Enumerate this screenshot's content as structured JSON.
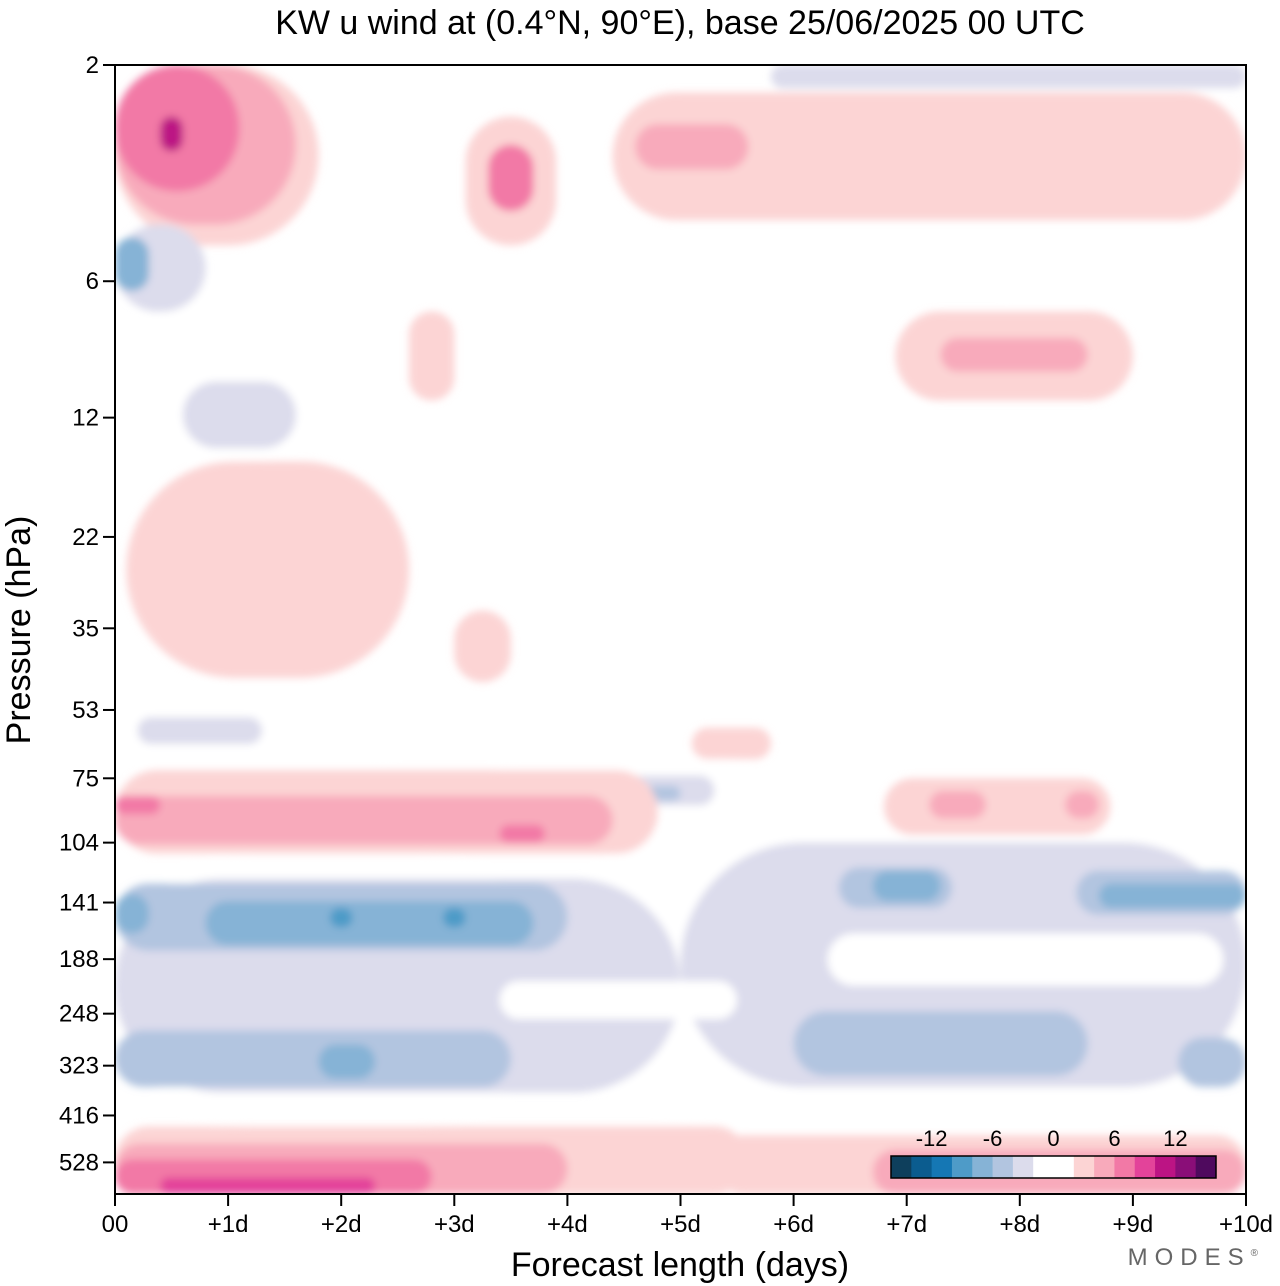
{
  "chart_data": {
    "type": "heatmap",
    "title": "KW u wind at (0.4°N, 90°E),  base 25/06/2025  00 UTC",
    "xlabel": "Forecast length (days)",
    "ylabel": "Pressure (hPa)",
    "x_ticks": [
      "00",
      "+1d",
      "+2d",
      "+3d",
      "+4d",
      "+5d",
      "+6d",
      "+7d",
      "+8d",
      "+9d",
      "+10d"
    ],
    "y_ticks": [
      "2",
      "6",
      "12",
      "22",
      "35",
      "53",
      "75",
      "104",
      "141",
      "188",
      "248",
      "323",
      "416",
      "528"
    ],
    "x_days": [
      0,
      10
    ],
    "y_scale": "log-pressure (top 2 hPa, bottom ~600 hPa)",
    "grid": false,
    "legend_placement": "bottom-right",
    "colorbar": {
      "labels": [
        "-12",
        "-6",
        "0",
        "6",
        "12"
      ],
      "label_values": [
        -12,
        -6,
        0,
        6,
        12
      ],
      "step": 2,
      "colors": [
        "#0e3f5c",
        "#0b5c8f",
        "#1577b4",
        "#4e9bc8",
        "#86b3d6",
        "#b2c5e0",
        "#dcdcec",
        "#ffffff",
        "#ffffff",
        "#fcd4d4",
        "#f8aabb",
        "#f279a6",
        "#e3439a",
        "#bc1484",
        "#8a0e78",
        "#4f0a5e"
      ]
    },
    "regions": [
      {
        "v": -2,
        "day": [
          0.0,
          3.9
        ],
        "p": [
          110,
          440
        ]
      },
      {
        "v": -2,
        "day": [
          3.9,
          10.0
        ],
        "p": [
          95,
          420
        ]
      },
      {
        "v": -4,
        "day": [
          0.0,
          5.0
        ],
        "p": [
          125,
          370
        ]
      },
      {
        "v": -4,
        "day": [
          5.0,
          10.0
        ],
        "p": [
          104,
          360
        ]
      },
      {
        "v": -2,
        "day": [
          3.4,
          5.5
        ],
        "p": [
          210,
          255
        ]
      },
      {
        "v": -2,
        "day": [
          6.3,
          9.8
        ],
        "p": [
          165,
          215
        ]
      },
      {
        "v": 0,
        "day": [
          7.5,
          7.6
        ],
        "p": [
          185,
          195
        ]
      },
      {
        "v": -6,
        "day": [
          0.0,
          4.0
        ],
        "p": [
          128,
          180
        ]
      },
      {
        "v": -6,
        "day": [
          0.0,
          3.5
        ],
        "p": [
          270,
          360
        ]
      },
      {
        "v": -6,
        "day": [
          6.0,
          8.6
        ],
        "p": [
          245,
          340
        ]
      },
      {
        "v": -6,
        "day": [
          9.4,
          10.0
        ],
        "p": [
          280,
          360
        ]
      },
      {
        "v": -6,
        "day": [
          6.4,
          7.4
        ],
        "p": [
          118,
          145
        ]
      },
      {
        "v": -6,
        "day": [
          8.5,
          10.0
        ],
        "p": [
          120,
          150
        ]
      },
      {
        "v": -8,
        "day": [
          0.0,
          0.3
        ],
        "p": [
          135,
          165
        ]
      },
      {
        "v": -8,
        "day": [
          0.8,
          3.7
        ],
        "p": [
          140,
          175
        ]
      },
      {
        "v": -8,
        "day": [
          1.8,
          2.3
        ],
        "p": [
          290,
          345
        ]
      },
      {
        "v": -8,
        "day": [
          6.7,
          7.3
        ],
        "p": [
          120,
          140
        ]
      },
      {
        "v": -8,
        "day": [
          8.7,
          10.0
        ],
        "p": [
          128,
          145
        ]
      },
      {
        "v": -10,
        "day": [
          1.9,
          2.1
        ],
        "p": [
          145,
          160
        ]
      },
      {
        "v": -10,
        "day": [
          2.9,
          3.1
        ],
        "p": [
          145,
          160
        ]
      },
      {
        "v": -2,
        "day": [
          0.0,
          2.6
        ],
        "p": [
          48,
          68
        ]
      },
      {
        "v": -4,
        "day": [
          0.2,
          1.3
        ],
        "p": [
          55,
          63
        ]
      },
      {
        "v": -2,
        "day": [
          3.3,
          5.6
        ],
        "p": [
          68,
          90
        ]
      },
      {
        "v": -4,
        "day": [
          4.2,
          5.3
        ],
        "p": [
          74,
          86
        ]
      },
      {
        "v": -6,
        "day": [
          4.5,
          5.0
        ],
        "p": [
          78,
          84
        ]
      },
      {
        "v": 2,
        "day": [
          0.0,
          4.8
        ],
        "p": [
          72,
          110
        ]
      },
      {
        "v": 4,
        "day": [
          0.0,
          4.4
        ],
        "p": [
          82,
          105
        ]
      },
      {
        "v": 6,
        "day": [
          3.4,
          3.8
        ],
        "p": [
          95,
          104
        ]
      },
      {
        "v": 6,
        "day": [
          0.0,
          0.4
        ],
        "p": [
          82,
          90
        ]
      },
      {
        "v": 2,
        "day": [
          6.8,
          8.8
        ],
        "p": [
          75,
          100
        ]
      },
      {
        "v": 4,
        "day": [
          7.2,
          7.7
        ],
        "p": [
          80,
          92
        ]
      },
      {
        "v": 4,
        "day": [
          8.4,
          8.7
        ],
        "p": [
          80,
          92
        ]
      },
      {
        "v": 2,
        "day": [
          5.1,
          5.8
        ],
        "p": [
          58,
          68
        ]
      },
      {
        "v": 2,
        "day": [
          0.1,
          2.6
        ],
        "p": [
          15,
          45
        ]
      },
      {
        "v": 2,
        "day": [
          3.0,
          3.5
        ],
        "p": [
          32,
          46
        ]
      },
      {
        "v": -2,
        "day": [
          7.6,
          9.6
        ],
        "p": [
          35,
          44
        ]
      },
      {
        "v": -2,
        "day": [
          0.2,
          1.9
        ],
        "p": [
          6,
          15
        ]
      },
      {
        "v": -4,
        "day": [
          0.6,
          1.6
        ],
        "p": [
          10,
          14
        ]
      },
      {
        "v": -2,
        "day": [
          3.2,
          4.0
        ],
        "p": [
          10,
          16
        ]
      },
      {
        "v": -2,
        "day": [
          6.7,
          7.2
        ],
        "p": [
          11,
          16
        ]
      },
      {
        "v": -2,
        "day": [
          9.4,
          10.0
        ],
        "p": [
          7,
          13
        ]
      },
      {
        "v": -2,
        "day": [
          7.7,
          9.6
        ],
        "p": [
          5,
          6.5
        ]
      },
      {
        "v": 2,
        "day": [
          6.9,
          9.0
        ],
        "p": [
          7,
          11
        ]
      },
      {
        "v": 4,
        "day": [
          7.3,
          8.6
        ],
        "p": [
          8,
          9.5
        ]
      },
      {
        "v": 2,
        "day": [
          0.0,
          1.8
        ],
        "p": [
          2,
          5
        ]
      },
      {
        "v": 4,
        "day": [
          0.0,
          1.6
        ],
        "p": [
          2,
          4.5
        ]
      },
      {
        "v": 6,
        "day": [
          0.0,
          1.1
        ],
        "p": [
          2,
          3.8
        ]
      },
      {
        "v": 10,
        "day": [
          0.4,
          0.6
        ],
        "p": [
          2.6,
          3.1
        ]
      },
      {
        "v": 2,
        "day": [
          2.6,
          3.0
        ],
        "p": [
          7,
          11
        ]
      },
      {
        "v": 2,
        "day": [
          3.1,
          3.9
        ],
        "p": [
          2.6,
          5
        ]
      },
      {
        "v": 6,
        "day": [
          3.3,
          3.7
        ],
        "p": [
          3.0,
          4.2
        ]
      },
      {
        "v": 2,
        "day": [
          4.4,
          10.0
        ],
        "p": [
          2.3,
          4.4
        ]
      },
      {
        "v": 4,
        "day": [
          4.6,
          5.6
        ],
        "p": [
          2.7,
          3.4
        ]
      },
      {
        "v": -4,
        "day": [
          0.0,
          0.8
        ],
        "p": [
          4.5,
          7
        ]
      },
      {
        "v": -8,
        "day": [
          0.0,
          0.3
        ],
        "p": [
          4.8,
          6.3
        ]
      },
      {
        "v": -4,
        "day": [
          5.8,
          10.0
        ],
        "p": [
          2.0,
          2.25
        ]
      },
      {
        "v": 2,
        "day": [
          0.0,
          5.6
        ],
        "p": [
          440,
          620
        ]
      },
      {
        "v": 2,
        "day": [
          5.3,
          10.0
        ],
        "p": [
          460,
          620
        ]
      },
      {
        "v": 4,
        "day": [
          0.0,
          4.0
        ],
        "p": [
          480,
          620
        ]
      },
      {
        "v": 4,
        "day": [
          6.7,
          10.0
        ],
        "p": [
          495,
          620
        ]
      },
      {
        "v": 6,
        "day": [
          0.0,
          2.8
        ],
        "p": [
          520,
          620
        ]
      },
      {
        "v": 8,
        "day": [
          0.4,
          2.3
        ],
        "p": [
          570,
          620
        ]
      }
    ]
  }
}
